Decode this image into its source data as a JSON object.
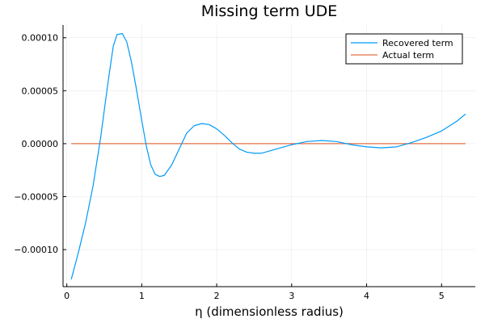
{
  "chart_data": {
    "type": "line",
    "title": "Missing term UDE",
    "xlabel": "η (dimensionless radius)",
    "ylabel": "",
    "xlim": [
      -0.05,
      5.45
    ],
    "ylim": [
      -0.000135,
      0.000112
    ],
    "x_ticks": [
      0,
      1,
      2,
      3,
      4,
      5
    ],
    "x_tick_labels": [
      "0",
      "1",
      "2",
      "3",
      "4",
      "5"
    ],
    "y_ticks": [
      0.0001,
      5e-05,
      0.0,
      -5e-05,
      -0.0001
    ],
    "y_tick_labels": [
      "0.00010",
      "0.00005",
      "0.00000",
      "−0.00005",
      "−0.00010"
    ],
    "grid": true,
    "legend_position": "top-right",
    "series": [
      {
        "name": "Recovered term",
        "color": "#009AFA",
        "points": [
          [
            0.06,
            -0.000128
          ],
          [
            0.15,
            -0.000104
          ],
          [
            0.25,
            -7.5e-05
          ],
          [
            0.35,
            -4e-05
          ],
          [
            0.45,
            5e-06
          ],
          [
            0.55,
            5.8e-05
          ],
          [
            0.62,
            9.2e-05
          ],
          [
            0.67,
            0.000103
          ],
          [
            0.74,
            0.000104
          ],
          [
            0.8,
            9.6e-05
          ],
          [
            0.86,
            7.8e-05
          ],
          [
            0.92,
            5.5e-05
          ],
          [
            1.0,
            2.2e-05
          ],
          [
            1.06,
            -2e-06
          ],
          [
            1.12,
            -2e-05
          ],
          [
            1.18,
            -2.9e-05
          ],
          [
            1.24,
            -3.1e-05
          ],
          [
            1.3,
            -3e-05
          ],
          [
            1.4,
            -2e-05
          ],
          [
            1.5,
            -5e-06
          ],
          [
            1.6,
            1e-05
          ],
          [
            1.7,
            1.7e-05
          ],
          [
            1.8,
            1.9e-05
          ],
          [
            1.9,
            1.8e-05
          ],
          [
            2.0,
            1.4e-05
          ],
          [
            2.1,
            8e-06
          ],
          [
            2.2,
            1e-06
          ],
          [
            2.3,
            -5e-06
          ],
          [
            2.4,
            -8e-06
          ],
          [
            2.5,
            -9e-06
          ],
          [
            2.6,
            -9e-06
          ],
          [
            2.7,
            -7e-06
          ],
          [
            2.8,
            -5e-06
          ],
          [
            3.0,
            -1e-06
          ],
          [
            3.2,
            2e-06
          ],
          [
            3.4,
            3e-06
          ],
          [
            3.6,
            2e-06
          ],
          [
            3.8,
            -1e-06
          ],
          [
            4.0,
            -3e-06
          ],
          [
            4.2,
            -4e-06
          ],
          [
            4.4,
            -3e-06
          ],
          [
            4.6,
            1e-06
          ],
          [
            4.8,
            6e-06
          ],
          [
            5.0,
            1.2e-05
          ],
          [
            5.2,
            2.1e-05
          ],
          [
            5.32,
            2.8e-05
          ]
        ]
      },
      {
        "name": "Actual term",
        "color": "#E26F46",
        "points": [
          [
            0.06,
            0.0
          ],
          [
            5.32,
            0.0
          ]
        ]
      }
    ]
  }
}
